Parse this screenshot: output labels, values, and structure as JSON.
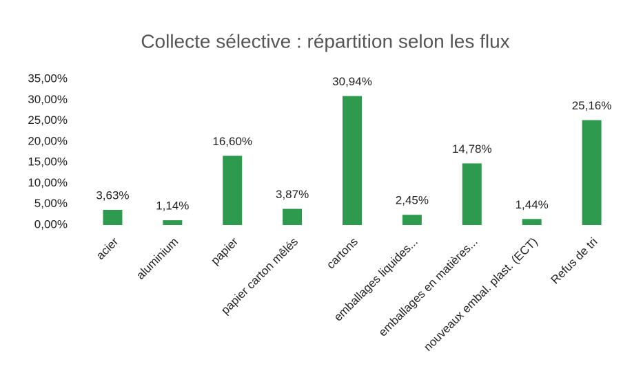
{
  "chart_data": {
    "type": "bar",
    "title": "Collecte sélective : répartition selon les flux",
    "categories": [
      "acier",
      "aluminium",
      "papier",
      "papier carton mêlés",
      "cartons",
      "emballages liquides...",
      "emballages en matières...",
      "nouveaux embal. plast. (ECT)",
      "Refus de tri"
    ],
    "values": [
      3.63,
      1.14,
      16.6,
      3.87,
      30.94,
      2.45,
      14.78,
      1.44,
      25.16
    ],
    "value_labels": [
      "3,63%",
      "1,14%",
      "16,60%",
      "3,87%",
      "30,94%",
      "2,45%",
      "14,78%",
      "1,44%",
      "25,16%"
    ],
    "color": "#2e9a4e",
    "ylim": [
      0,
      35
    ],
    "yticks": [
      {
        "value": 0,
        "label": "0,00%"
      },
      {
        "value": 5,
        "label": "5,00%"
      },
      {
        "value": 10,
        "label": "10,00%"
      },
      {
        "value": 15,
        "label": "15,00%"
      },
      {
        "value": 20,
        "label": "20,00%"
      },
      {
        "value": 25,
        "label": "25,00%"
      },
      {
        "value": 30,
        "label": "30,00%"
      },
      {
        "value": 35,
        "label": "35,00%"
      }
    ],
    "grid": false
  }
}
